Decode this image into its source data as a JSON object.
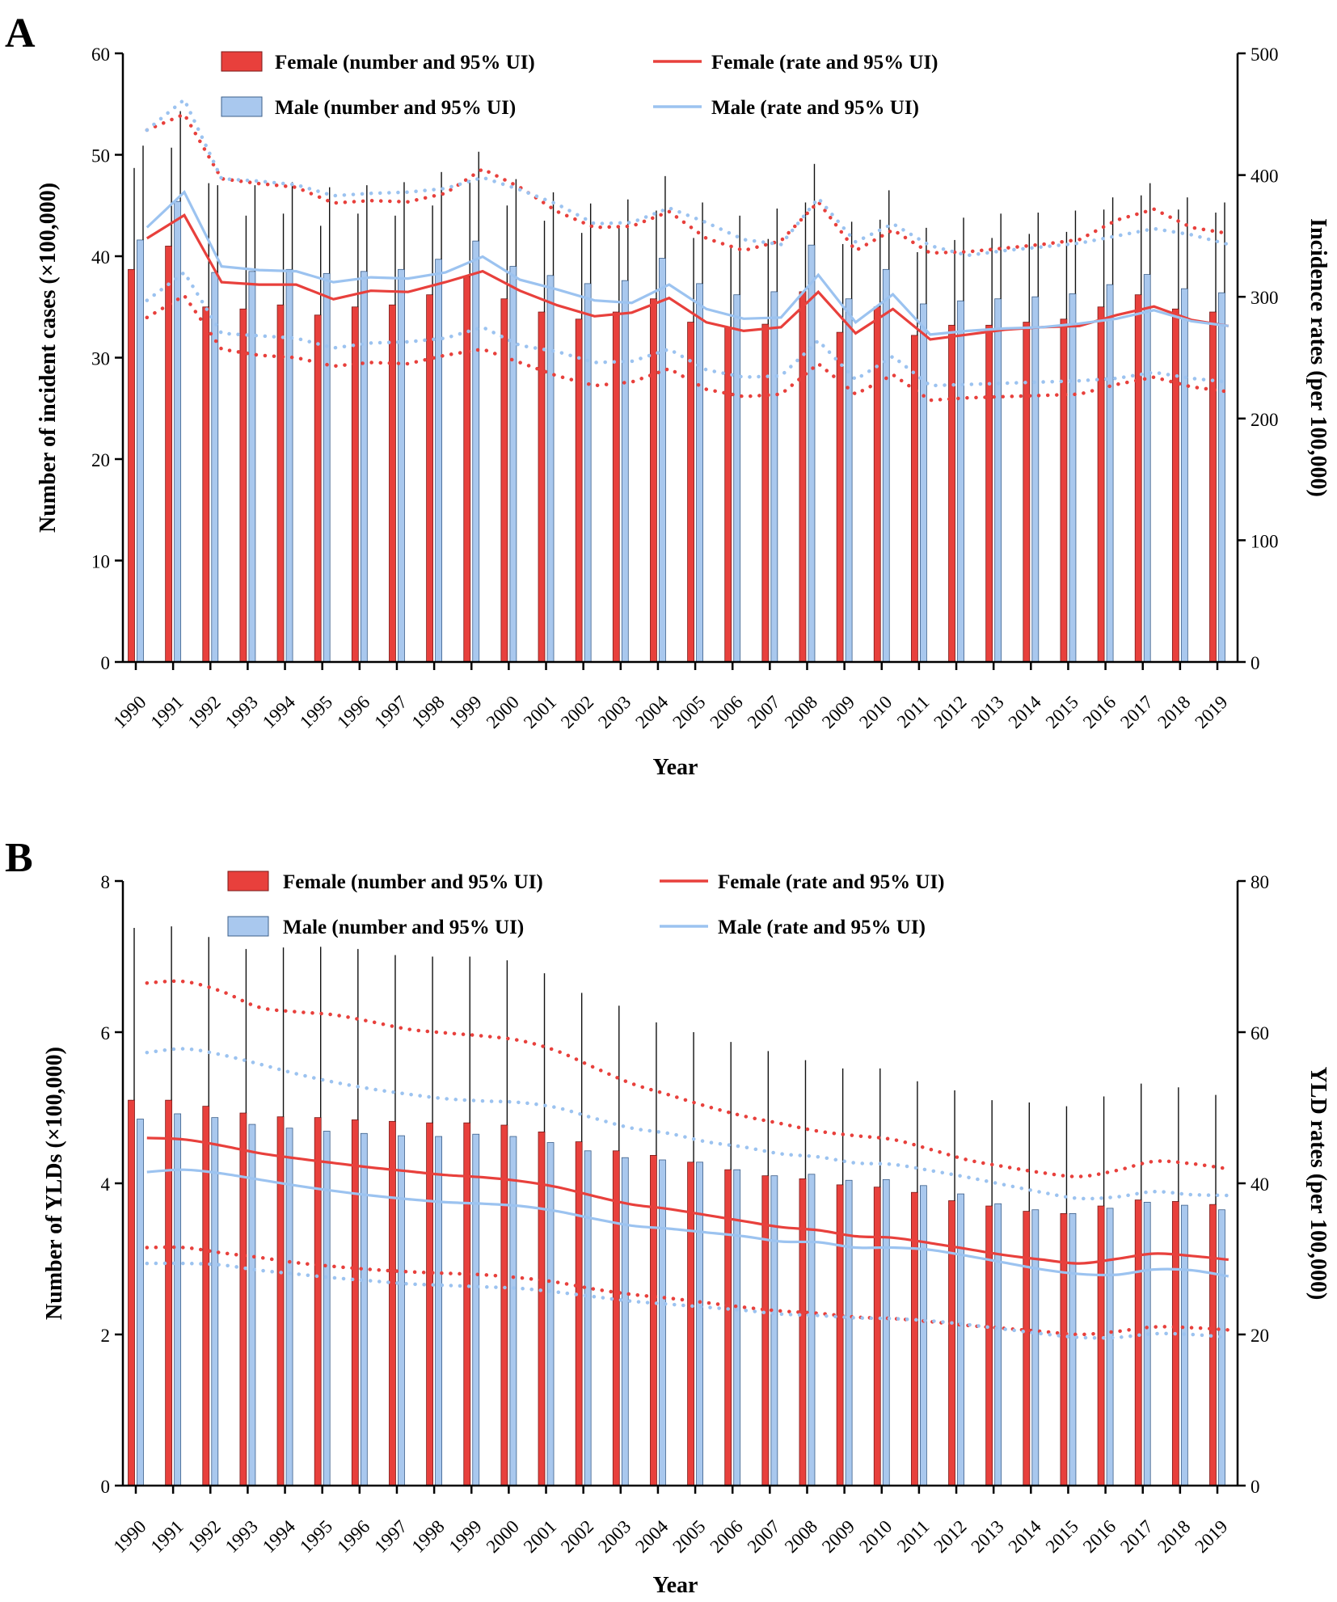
{
  "colors": {
    "female_bar": "#e8403c",
    "female_line": "#e8403c",
    "male_bar": "#a9c8ee",
    "male_line": "#9cc3f0",
    "axis": "#000000"
  },
  "chart_data": [
    {
      "panel": "A",
      "type": "bar",
      "xlabel": "Year",
      "ylabel": "Number of incident cases (×100,000)",
      "y2label": "Incidence rates (per 100,000)",
      "ylim": [
        0,
        60
      ],
      "yticks": [
        0,
        10,
        20,
        30,
        40,
        50,
        60
      ],
      "y2lim": [
        0,
        500
      ],
      "y2ticks": [
        0,
        100,
        200,
        300,
        400,
        500
      ],
      "legend": {
        "female_number": "Female (number and 95% UI)",
        "male_number": "Male (number and 95% UI)",
        "female_rate": "Female (rate and 95% UI)",
        "male_rate": "Male (rate and 95% UI)"
      },
      "categories": [
        "1990",
        "1991",
        "1992",
        "1993",
        "1994",
        "1995",
        "1996",
        "1997",
        "1998",
        "1999",
        "2000",
        "2001",
        "2002",
        "2003",
        "2004",
        "2005",
        "2006",
        "2007",
        "2008",
        "2009",
        "2010",
        "2011",
        "2012",
        "2013",
        "2014",
        "2015",
        "2016",
        "2017",
        "2018",
        "2019"
      ],
      "series": [
        {
          "name": "Female (number and 95% UI)",
          "kind": "bar",
          "values": [
            38.7,
            41.0,
            35.0,
            34.8,
            35.2,
            34.2,
            35.0,
            35.2,
            36.2,
            38.0,
            35.8,
            34.5,
            33.8,
            34.5,
            35.8,
            33.5,
            33.0,
            33.3,
            36.5,
            32.5,
            35.0,
            32.2,
            33.2,
            33.2,
            33.5,
            33.8,
            35.0,
            36.2,
            34.8,
            34.5
          ],
          "upper": [
            48.7,
            50.7,
            47.2,
            44.0,
            44.2,
            43.0,
            44.2,
            44.0,
            45.0,
            47.5,
            45.0,
            43.5,
            42.3,
            42.8,
            44.5,
            41.8,
            41.0,
            41.7,
            45.3,
            41.2,
            43.6,
            40.4,
            41.6,
            41.8,
            42.2,
            42.4,
            44.6,
            46.0,
            44.6,
            44.3
          ]
        },
        {
          "name": "Male (number and 95% UI)",
          "kind": "bar",
          "values": [
            41.6,
            45.4,
            38.4,
            38.5,
            38.7,
            38.3,
            38.5,
            38.7,
            39.7,
            41.5,
            39.0,
            38.1,
            37.3,
            37.6,
            39.8,
            37.3,
            36.2,
            36.5,
            41.1,
            35.8,
            38.7,
            35.3,
            35.6,
            35.8,
            36.0,
            36.3,
            37.2,
            38.2,
            36.8,
            36.4
          ],
          "upper": [
            50.9,
            54.3,
            47.0,
            47.0,
            47.3,
            46.8,
            47.0,
            47.3,
            48.3,
            50.3,
            47.6,
            46.3,
            45.2,
            45.6,
            47.9,
            45.3,
            44.0,
            44.7,
            49.1,
            43.4,
            46.5,
            42.8,
            43.8,
            44.2,
            44.3,
            44.5,
            45.8,
            47.2,
            45.8,
            45.3
          ]
        },
        {
          "name": "Female (rate and 95% UI)",
          "kind": "line",
          "values": [
            348,
            367,
            312,
            310,
            310,
            298,
            305,
            304,
            312,
            321,
            305,
            293,
            284,
            287,
            299,
            279,
            272,
            275,
            304,
            270,
            290,
            265,
            269,
            273,
            275,
            276,
            285,
            292,
            281,
            276
          ],
          "upper": [
            437,
            450,
            397,
            393,
            390,
            377,
            379,
            378,
            385,
            405,
            390,
            370,
            357,
            358,
            370,
            348,
            338,
            346,
            378,
            338,
            355,
            336,
            337,
            340,
            343,
            347,
            363,
            372,
            357,
            352
          ],
          "lower": [
            283,
            301,
            257,
            252,
            250,
            243,
            246,
            245,
            252,
            257,
            246,
            235,
            227,
            230,
            241,
            224,
            218,
            220,
            245,
            220,
            236,
            215,
            217,
            218,
            219,
            220,
            228,
            234,
            226,
            222
          ]
        },
        {
          "name": "Male (rate and 95% UI)",
          "kind": "line",
          "values": [
            357,
            386,
            325,
            322,
            321,
            312,
            316,
            315,
            320,
            333,
            314,
            306,
            297,
            295,
            310,
            290,
            282,
            283,
            318,
            279,
            302,
            269,
            272,
            274,
            275,
            278,
            282,
            289,
            280,
            276
          ],
          "upper": [
            437,
            462,
            397,
            395,
            392,
            383,
            385,
            386,
            389,
            398,
            388,
            376,
            360,
            361,
            373,
            361,
            347,
            343,
            381,
            345,
            360,
            342,
            334,
            338,
            341,
            344,
            350,
            356,
            351,
            343
          ],
          "lower": [
            297,
            320,
            270,
            268,
            266,
            258,
            262,
            263,
            266,
            275,
            260,
            255,
            246,
            247,
            257,
            240,
            234,
            235,
            264,
            232,
            251,
            227,
            228,
            229,
            230,
            231,
            233,
            238,
            233,
            230
          ]
        }
      ]
    },
    {
      "panel": "B",
      "type": "bar",
      "xlabel": "Year",
      "ylabel": "Number of YLDs (×100,000)",
      "y2label": "YLD rates (per 100,000)",
      "ylim": [
        0,
        8
      ],
      "yticks": [
        0,
        2,
        4,
        6,
        8
      ],
      "y2lim": [
        0,
        80
      ],
      "y2ticks": [
        0,
        20,
        40,
        60,
        80
      ],
      "legend": {
        "female_number": "Female (number and 95% UI)",
        "male_number": "Male (number and 95% UI)",
        "female_rate": "Female (rate and 95% UI)",
        "male_rate": "Male (rate and 95% UI)"
      },
      "categories": [
        "1990",
        "1991",
        "1992",
        "1993",
        "1994",
        "1995",
        "1996",
        "1997",
        "1998",
        "1999",
        "2000",
        "2001",
        "2002",
        "2003",
        "2004",
        "2005",
        "2006",
        "2007",
        "2008",
        "2009",
        "2010",
        "2011",
        "2012",
        "2013",
        "2014",
        "2015",
        "2016",
        "2017",
        "2018",
        "2019"
      ],
      "series": [
        {
          "name": "Female (number and 95% UI)",
          "kind": "bar",
          "values": [
            5.1,
            5.1,
            5.02,
            4.93,
            4.88,
            4.87,
            4.84,
            4.82,
            4.8,
            4.8,
            4.77,
            4.68,
            4.55,
            4.43,
            4.37,
            4.28,
            4.18,
            4.1,
            4.06,
            3.98,
            3.95,
            3.88,
            3.77,
            3.7,
            3.63,
            3.6,
            3.7,
            3.78,
            3.76,
            3.72
          ],
          "upper": [
            7.38,
            7.4,
            7.26,
            7.1,
            7.12,
            7.13,
            7.1,
            7.02,
            7.0,
            7.0,
            6.95,
            6.78,
            6.52,
            6.35,
            6.13,
            6.0,
            5.87,
            5.75,
            5.63,
            5.52,
            5.52,
            5.35,
            5.23,
            5.1,
            5.07,
            5.02,
            5.15,
            5.32,
            5.27,
            5.17
          ]
        },
        {
          "name": "Male (number and 95% UI)",
          "kind": "bar",
          "values": [
            4.85,
            4.92,
            4.87,
            4.78,
            4.73,
            4.69,
            4.66,
            4.63,
            4.62,
            4.65,
            4.62,
            4.54,
            4.43,
            4.34,
            4.31,
            4.28,
            4.18,
            4.1,
            4.12,
            4.04,
            4.05,
            3.97,
            3.86,
            3.73,
            3.65,
            3.6,
            3.67,
            3.75,
            3.71,
            3.65
          ]
        },
        {
          "name": "Female (rate and 95% UI)",
          "kind": "line",
          "values": [
            46.0,
            45.8,
            45.0,
            44.0,
            43.3,
            42.7,
            42.1,
            41.6,
            41.1,
            40.8,
            40.3,
            39.5,
            38.3,
            37.2,
            36.6,
            35.8,
            35.0,
            34.2,
            33.8,
            33.0,
            32.8,
            32.1,
            31.3,
            30.5,
            29.9,
            29.4,
            30.0,
            30.7,
            30.4,
            29.9
          ],
          "upper": [
            66.5,
            66.7,
            65.4,
            63.3,
            62.7,
            62.3,
            61.4,
            60.4,
            59.9,
            59.5,
            58.9,
            57.5,
            55.3,
            53.2,
            51.7,
            50.2,
            48.9,
            47.9,
            46.9,
            46.3,
            45.8,
            44.5,
            43.1,
            42.2,
            41.4,
            40.9,
            41.7,
            42.9,
            42.6,
            41.9
          ],
          "lower": [
            31.5,
            31.5,
            30.8,
            30.2,
            29.5,
            29.0,
            28.6,
            28.3,
            28.1,
            27.9,
            27.5,
            26.9,
            26.0,
            25.3,
            24.8,
            24.2,
            23.6,
            23.1,
            22.8,
            22.3,
            22.1,
            21.7,
            21.2,
            20.8,
            20.4,
            20.0,
            20.4,
            21.0,
            20.9,
            20.6
          ]
        },
        {
          "name": "Male (rate and 95% UI)",
          "kind": "line",
          "values": [
            41.5,
            41.8,
            41.3,
            40.5,
            39.7,
            39.0,
            38.4,
            37.9,
            37.5,
            37.3,
            37.0,
            36.3,
            35.3,
            34.4,
            34.0,
            33.5,
            33.0,
            32.3,
            32.2,
            31.5,
            31.5,
            31.2,
            30.4,
            29.5,
            28.6,
            28.0,
            27.9,
            28.6,
            28.5,
            27.7
          ],
          "upper": [
            57.3,
            57.8,
            57.0,
            55.8,
            54.5,
            53.4,
            52.5,
            51.8,
            51.2,
            50.9,
            50.7,
            50.0,
            48.6,
            47.3,
            46.6,
            45.5,
            44.8,
            43.9,
            43.5,
            42.7,
            42.5,
            41.7,
            40.8,
            39.8,
            38.8,
            38.0,
            38.2,
            38.9,
            38.5,
            38.4
          ],
          "lower": [
            29.4,
            29.4,
            29.2,
            28.5,
            28.0,
            27.5,
            27.1,
            26.7,
            26.5,
            26.3,
            26.1,
            25.6,
            25.0,
            24.4,
            24.0,
            23.6,
            23.2,
            22.7,
            22.5,
            22.2,
            22.1,
            21.8,
            21.3,
            20.7,
            20.1,
            19.6,
            19.6,
            20.1,
            20.0,
            19.6
          ]
        }
      ]
    }
  ]
}
